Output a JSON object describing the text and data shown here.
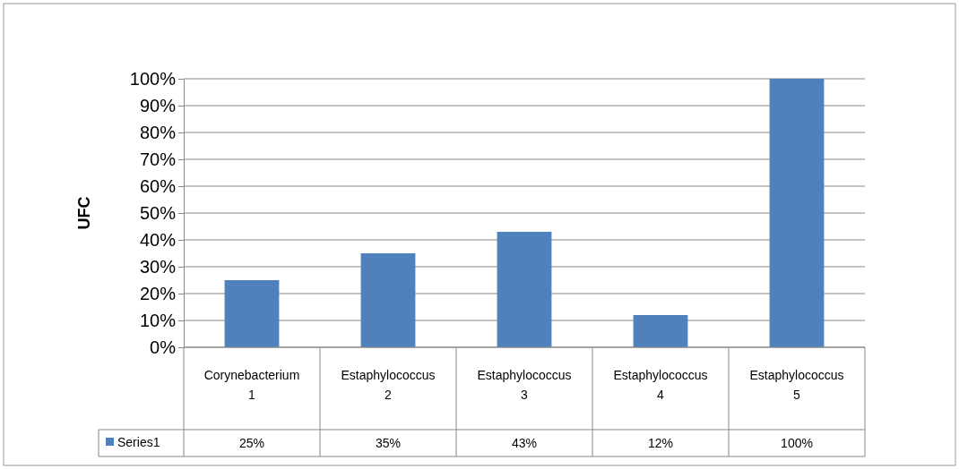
{
  "chart_data": {
    "type": "bar",
    "ylabel": "UFC",
    "categories": [
      "Corynebacterium\n1",
      "Estaphylococcus\n2",
      "Estaphylococcus\n3",
      "Estaphylococcus\n4",
      "Estaphylococcus\n5"
    ],
    "series": [
      {
        "name": "Series1",
        "color": "#4f81bd",
        "values": [
          25,
          35,
          43,
          12,
          100
        ],
        "value_labels": [
          "25%",
          "35%",
          "43%",
          "12%",
          "100%"
        ]
      }
    ],
    "ylim": [
      0,
      100
    ],
    "yticks": [
      {
        "value": 0,
        "label": "0%"
      },
      {
        "value": 10,
        "label": "10%"
      },
      {
        "value": 20,
        "label": "20%"
      },
      {
        "value": 30,
        "label": "30%"
      },
      {
        "value": 40,
        "label": "40%"
      },
      {
        "value": 50,
        "label": "50%"
      },
      {
        "value": 60,
        "label": "60%"
      },
      {
        "value": 70,
        "label": "70%"
      },
      {
        "value": 80,
        "label": "80%"
      },
      {
        "value": 90,
        "label": "90%"
      },
      {
        "value": 100,
        "label": "100%"
      }
    ],
    "grid": true,
    "legend": "bottom"
  }
}
